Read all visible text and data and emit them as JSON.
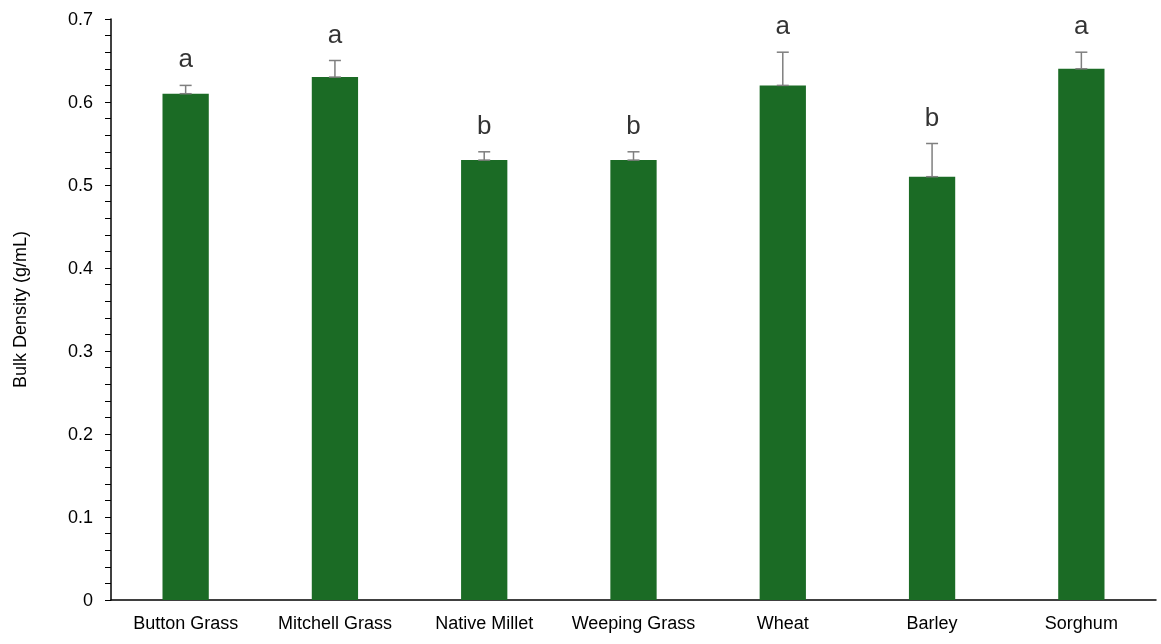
{
  "chart_data": {
    "type": "bar",
    "ylabel": "Bulk Density (g/mL)",
    "categories": [
      "Button Grass",
      "Mitchell Grass",
      "Native Millet",
      "Weeping Grass",
      "Wheat",
      "Barley",
      "Sorghum"
    ],
    "values": [
      0.61,
      0.63,
      0.53,
      0.53,
      0.62,
      0.51,
      0.64
    ],
    "errors": [
      [
        0.61,
        0.62
      ],
      [
        0.63,
        0.65
      ],
      [
        0.53,
        0.54
      ],
      [
        0.53,
        0.54
      ],
      [
        0.62,
        0.66
      ],
      [
        0.51,
        0.55
      ],
      [
        0.64,
        0.66
      ]
    ],
    "color": "#1b6b25",
    "ylim": [
      0,
      0.7
    ],
    "yticks": [
      0,
      {
        "value": 0.02,
        "label": null
      },
      {
        "value": 0.04,
        "label": null
      },
      {
        "value": 0.06,
        "label": null
      },
      {
        "value": 0.08,
        "label": null
      },
      0.1,
      {
        "value": 0.12,
        "label": null
      },
      {
        "value": 0.14,
        "label": null
      },
      {
        "value": 0.16,
        "label": null
      },
      {
        "value": 0.18,
        "label": null
      },
      0.2,
      {
        "value": 0.22,
        "label": null
      },
      {
        "value": 0.24,
        "label": null
      },
      {
        "value": 0.26,
        "label": null
      },
      {
        "value": 0.28,
        "label": null
      },
      0.3,
      {
        "value": 0.32,
        "label": null
      },
      {
        "value": 0.34,
        "label": null
      },
      {
        "value": 0.36,
        "label": null
      },
      {
        "value": 0.38,
        "label": null
      },
      0.4,
      {
        "value": 0.42,
        "label": null
      },
      {
        "value": 0.44,
        "label": null
      },
      {
        "value": 0.46,
        "label": null
      },
      {
        "value": 0.48,
        "label": null
      },
      0.5,
      {
        "value": 0.52,
        "label": null
      },
      {
        "value": 0.54,
        "label": null
      },
      {
        "value": 0.56,
        "label": null
      },
      {
        "value": 0.58,
        "label": null
      },
      0.6,
      {
        "value": 0.62,
        "label": null
      },
      {
        "value": 0.64,
        "label": null
      },
      {
        "value": 0.66,
        "label": null
      },
      {
        "value": 0.68,
        "label": null
      },
      0.7
    ],
    "grid": false,
    "annotations": [
      "a",
      "a",
      "b",
      "b",
      "a",
      "b",
      "a"
    ]
  }
}
